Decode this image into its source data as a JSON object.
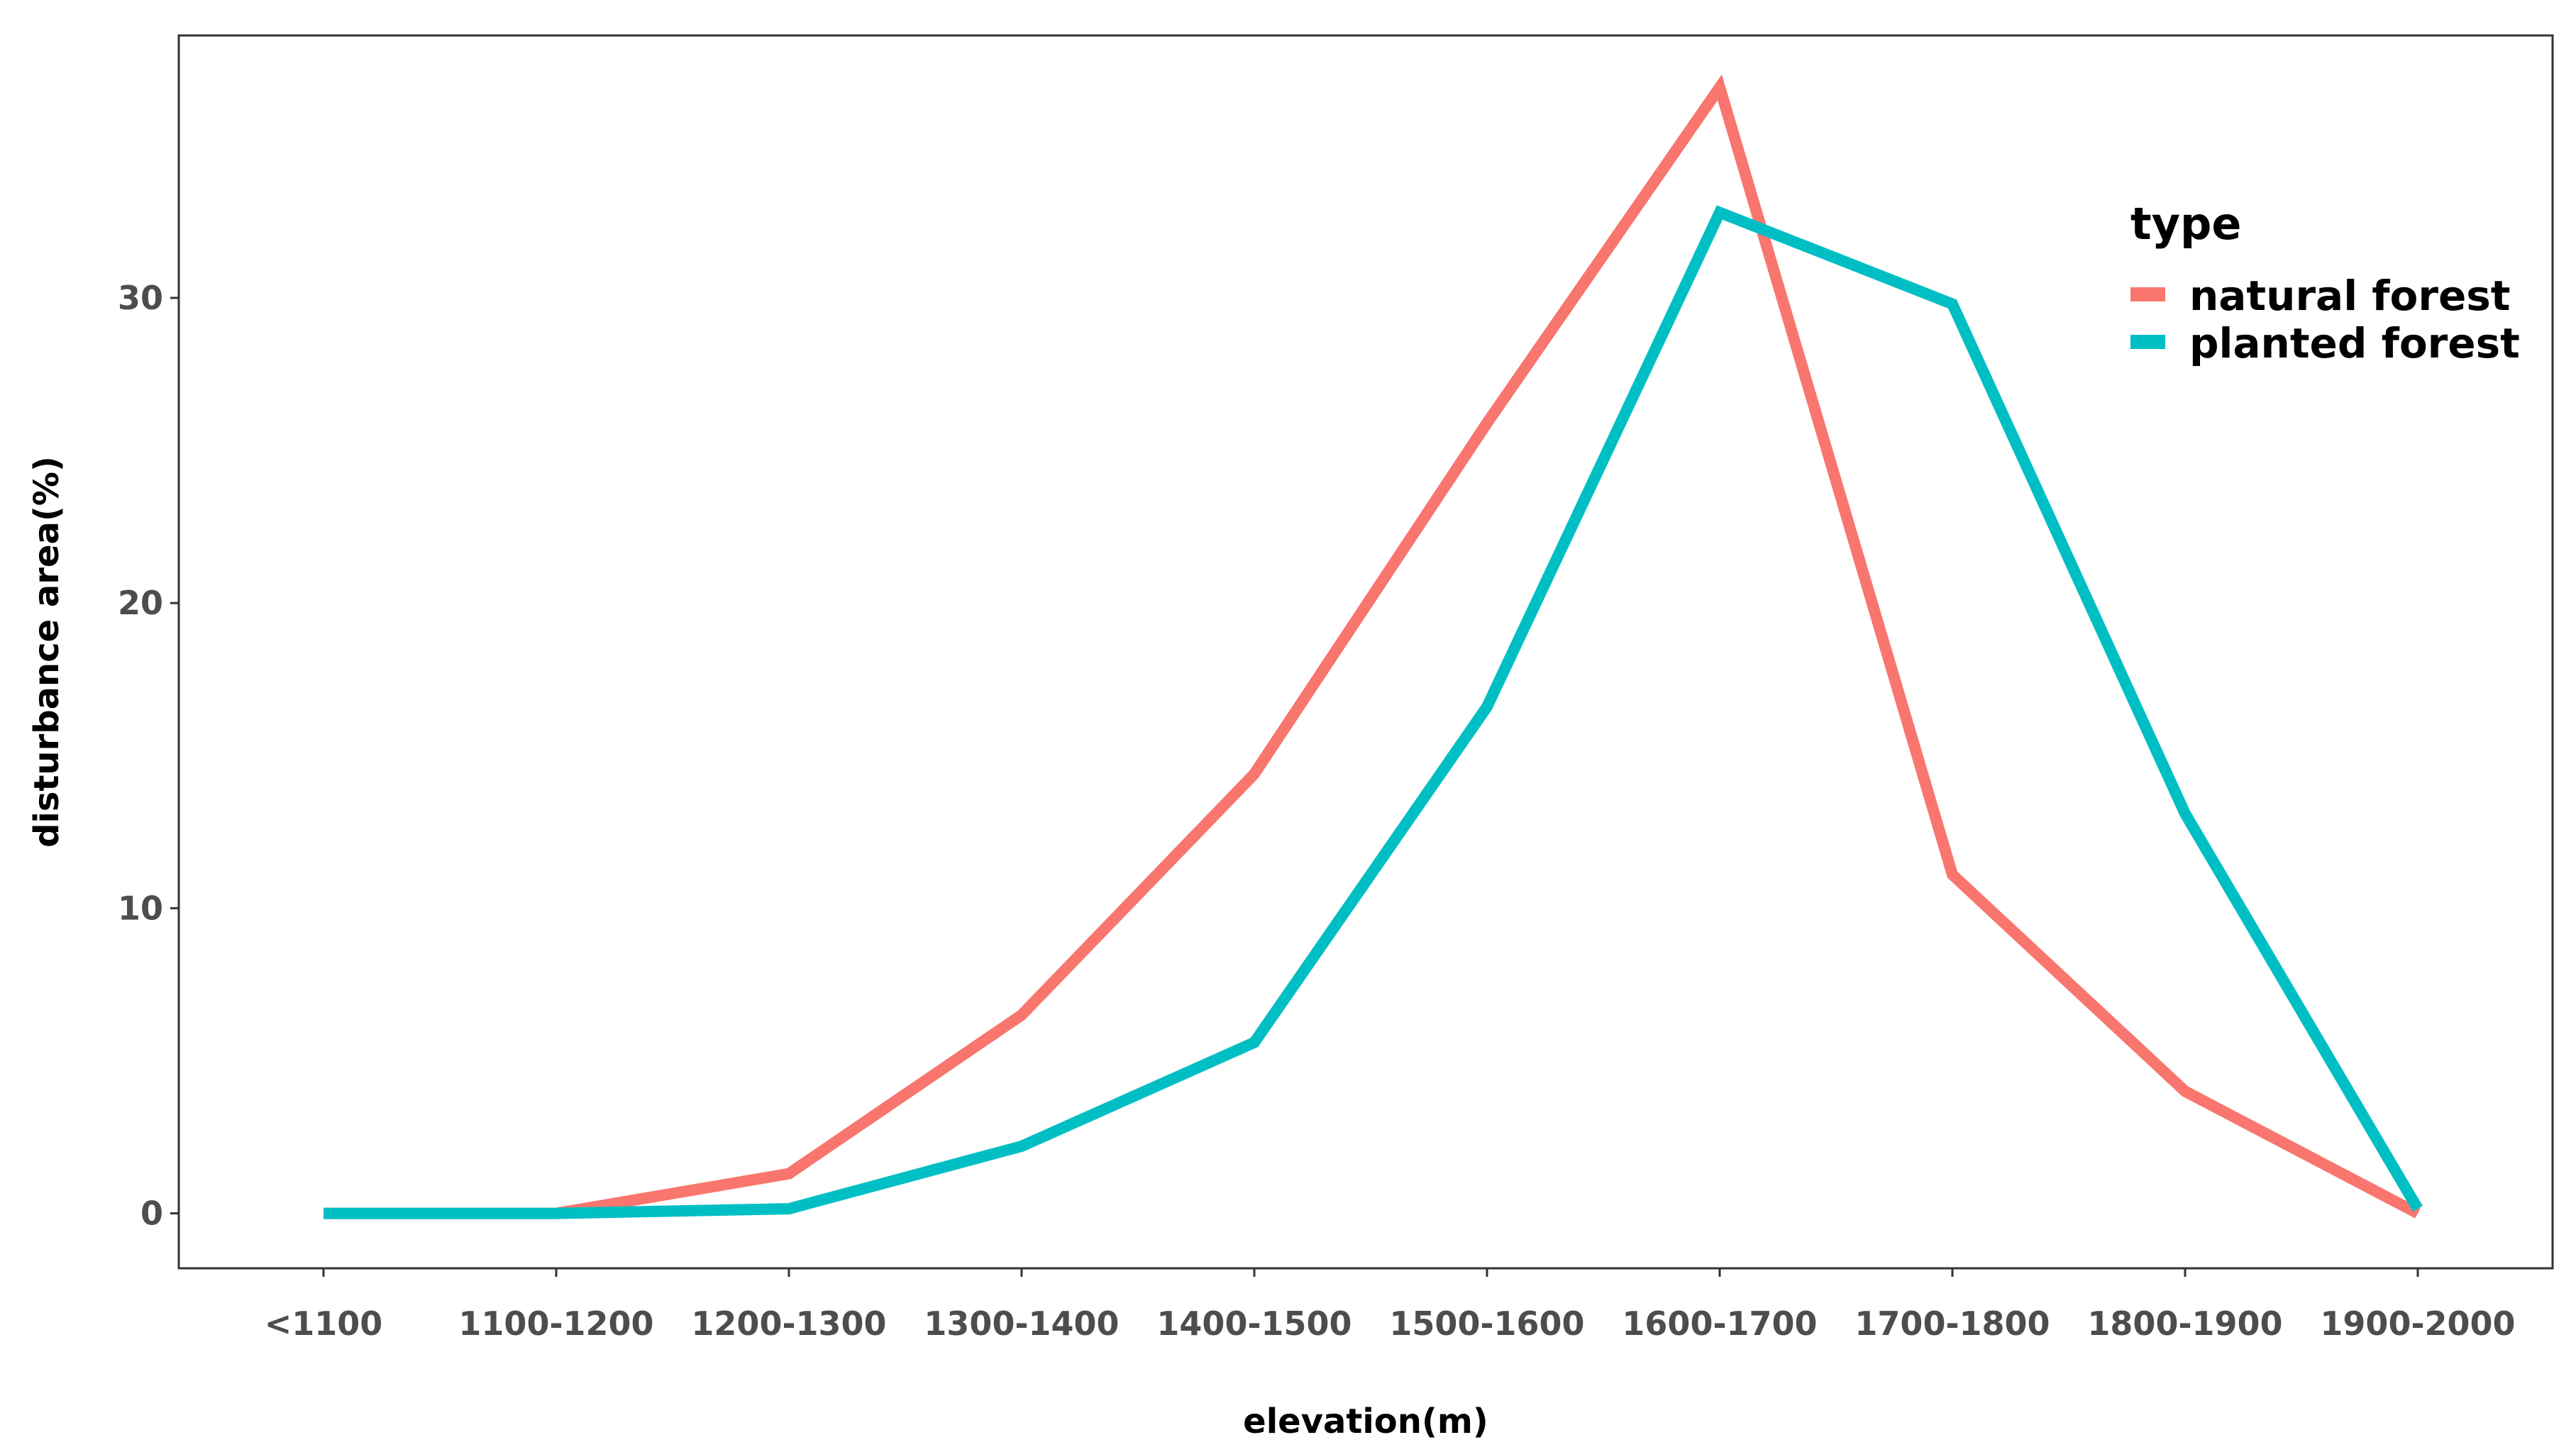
{
  "chart_data": {
    "type": "line",
    "xlabel": "elevation(m)",
    "ylabel": "disturbance area(%)",
    "categories": [
      "<1100",
      "1100-1200",
      "1200-1300",
      "1300-1400",
      "1400-1500",
      "1500-1600",
      "1600-1700",
      "1700-1800",
      "1800-1900",
      "1900-2000"
    ],
    "yticks": [
      0,
      10,
      20,
      30
    ],
    "ylim": [
      -1.8,
      38.6
    ],
    "grid": false,
    "legend": {
      "title": "type",
      "placement": "top-right, inside plot"
    },
    "series": [
      {
        "name": "natural forest",
        "color": "#F8766D",
        "values": [
          0,
          0,
          1.3,
          6.5,
          14.4,
          25.9,
          36.9,
          11.1,
          4.0,
          0
        ]
      },
      {
        "name": "planted forest",
        "color": "#00BFC4",
        "values": [
          0,
          0,
          0.15,
          2.2,
          5.6,
          16.6,
          32.8,
          29.8,
          13.1,
          0.15
        ]
      }
    ]
  }
}
